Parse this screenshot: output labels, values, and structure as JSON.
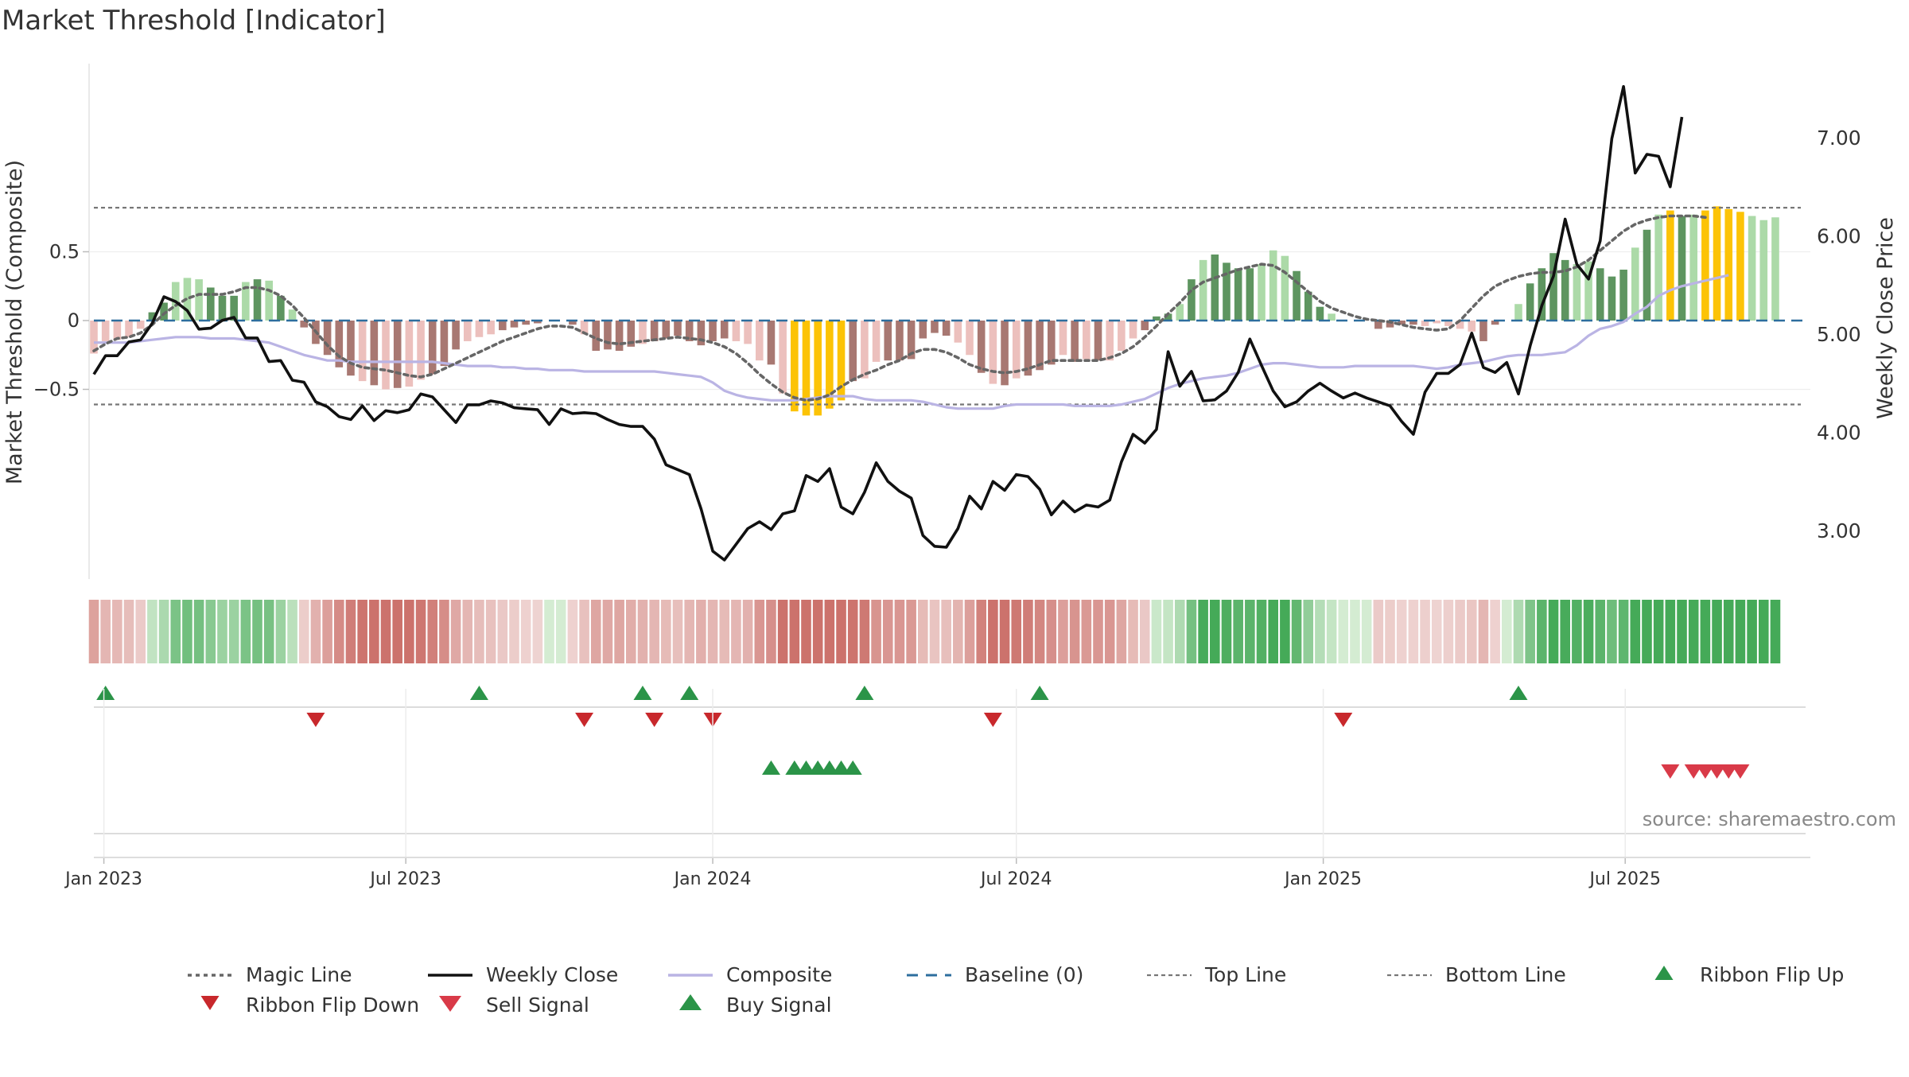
{
  "chart_data": {
    "type": "bar",
    "title": "Market Threshold [Indicator]",
    "ylabel": "Market Threshold (Composite)",
    "y2label": "Weekly Close Price",
    "source": "source: sharemaestro.com",
    "ylim": [
      -0.93,
      0.93
    ],
    "y2lim": [
      2.43,
      7.98
    ],
    "y_ticks": [
      {
        "value": 0.5,
        "label": "0.5"
      },
      {
        "value": 0,
        "label": "0"
      },
      {
        "value": -0.5,
        "label": "−0.5"
      }
    ],
    "y2_ticks": [
      {
        "value": 7.0,
        "label": "7.00"
      },
      {
        "value": 6.0,
        "label": "6.00"
      },
      {
        "value": 5.0,
        "label": "5.00"
      },
      {
        "value": 4.0,
        "label": "4.00"
      },
      {
        "value": 3.0,
        "label": "3.00"
      }
    ],
    "x_start": "2022-12-26",
    "x_end": "2025-10-20",
    "x_ticks": [
      {
        "date": "2023-01-01",
        "label": "Jan 2023"
      },
      {
        "date": "2023-07-01",
        "label": "Jul 2023"
      },
      {
        "date": "2024-01-01",
        "label": "Jan 2024"
      },
      {
        "date": "2024-07-01",
        "label": "Jul 2024"
      },
      {
        "date": "2025-01-01",
        "label": "Jan 2025"
      },
      {
        "date": "2025-07-01",
        "label": "Jul 2025"
      }
    ],
    "top_line": 0.82,
    "bottom_line": -0.61,
    "colors": {
      "bar_strong_up": "#5e9560",
      "bar_weak_up": "#acdaa8",
      "bar_strong_down": "#a87872",
      "bar_weak_down": "#ecc0bd",
      "bar_signal": "#fcc306",
      "magic_line": "#666666",
      "weekly_close": "#111111",
      "composite": "#bab4e4",
      "baseline": "#2d6e9e",
      "ref_line": "#777777",
      "flip_up": "#2b9448",
      "flip_down": "#c8282c",
      "sell": "#d93a48",
      "buy": "#2b9448"
    },
    "series": [
      {
        "name": "Magic Line",
        "values": [
          -0.22,
          -0.17,
          -0.13,
          -0.12,
          -0.09,
          -0.03,
          0.05,
          0.11,
          0.16,
          0.19,
          0.19,
          0.19,
          0.21,
          0.24,
          0.24,
          0.22,
          0.18,
          0.11,
          0.02,
          -0.08,
          -0.18,
          -0.26,
          -0.31,
          -0.34,
          -0.35,
          -0.36,
          -0.38,
          -0.4,
          -0.41,
          -0.39,
          -0.35,
          -0.31,
          -0.27,
          -0.23,
          -0.19,
          -0.15,
          -0.12,
          -0.09,
          -0.06,
          -0.04,
          -0.04,
          -0.05,
          -0.09,
          -0.13,
          -0.16,
          -0.17,
          -0.16,
          -0.15,
          -0.14,
          -0.13,
          -0.12,
          -0.13,
          -0.14,
          -0.16,
          -0.19,
          -0.24,
          -0.31,
          -0.39,
          -0.46,
          -0.52,
          -0.56,
          -0.58,
          -0.57,
          -0.54,
          -0.48,
          -0.43,
          -0.39,
          -0.36,
          -0.32,
          -0.29,
          -0.24,
          -0.21,
          -0.21,
          -0.23,
          -0.27,
          -0.32,
          -0.35,
          -0.37,
          -0.38,
          -0.37,
          -0.35,
          -0.32,
          -0.29,
          -0.29,
          -0.29,
          -0.29,
          -0.29,
          -0.27,
          -0.24,
          -0.19,
          -0.12,
          -0.04,
          0.05,
          0.13,
          0.22,
          0.28,
          0.31,
          0.34,
          0.37,
          0.39,
          0.41,
          0.4,
          0.35,
          0.28,
          0.21,
          0.14,
          0.09,
          0.06,
          0.03,
          0.01,
          0.0,
          -0.01,
          -0.03,
          -0.05,
          -0.06,
          -0.07,
          -0.06,
          0.0,
          0.09,
          0.18,
          0.25,
          0.29,
          0.32,
          0.34,
          0.35,
          0.35,
          0.36,
          0.39,
          0.44,
          0.51,
          0.58,
          0.65,
          0.7,
          0.73,
          0.75,
          0.76,
          0.76,
          0.76,
          0.75
        ]
      },
      {
        "name": "Weekly Close",
        "values": [
          4.59,
          4.78,
          4.78,
          4.92,
          4.94,
          5.11,
          5.38,
          5.33,
          5.24,
          5.05,
          5.06,
          5.14,
          5.17,
          4.96,
          4.96,
          4.72,
          4.73,
          4.53,
          4.51,
          4.31,
          4.26,
          4.16,
          4.13,
          4.27,
          4.12,
          4.22,
          4.2,
          4.23,
          4.39,
          4.36,
          4.23,
          4.1,
          4.28,
          4.28,
          4.32,
          4.3,
          4.25,
          4.24,
          4.23,
          4.08,
          4.24,
          4.19,
          4.2,
          4.19,
          4.13,
          4.08,
          4.06,
          4.06,
          3.93,
          3.67,
          3.62,
          3.57,
          3.22,
          2.79,
          2.7,
          2.86,
          3.02,
          3.09,
          3.01,
          3.17,
          3.2,
          3.56,
          3.5,
          3.63,
          3.24,
          3.17,
          3.39,
          3.69,
          3.5,
          3.4,
          3.33,
          2.95,
          2.84,
          2.83,
          3.02,
          3.35,
          3.22,
          3.5,
          3.41,
          3.57,
          3.55,
          3.42,
          3.16,
          3.3,
          3.19,
          3.26,
          3.24,
          3.31,
          3.7,
          3.98,
          3.89,
          4.03,
          4.82,
          4.47,
          4.62,
          4.32,
          4.33,
          4.42,
          4.61,
          4.95,
          4.68,
          4.42,
          4.26,
          4.31,
          4.42,
          4.5,
          4.42,
          4.35,
          4.4,
          4.35,
          4.31,
          4.27,
          4.11,
          3.98,
          4.41,
          4.6,
          4.6,
          4.69,
          5.01,
          4.66,
          4.61,
          4.71,
          4.39,
          4.88,
          5.29,
          5.59,
          6.17,
          5.71,
          5.56,
          5.95,
          6.99,
          7.52,
          6.64,
          6.83,
          6.81,
          6.5,
          7.21
        ]
      },
      {
        "name": "Composite",
        "values": [
          -0.16,
          -0.16,
          -0.16,
          -0.16,
          -0.15,
          -0.14,
          -0.13,
          -0.12,
          -0.12,
          -0.12,
          -0.13,
          -0.13,
          -0.13,
          -0.14,
          -0.15,
          -0.16,
          -0.19,
          -0.22,
          -0.25,
          -0.27,
          -0.29,
          -0.29,
          -0.3,
          -0.3,
          -0.3,
          -0.3,
          -0.3,
          -0.3,
          -0.3,
          -0.3,
          -0.31,
          -0.32,
          -0.33,
          -0.33,
          -0.33,
          -0.34,
          -0.34,
          -0.35,
          -0.35,
          -0.36,
          -0.36,
          -0.36,
          -0.37,
          -0.37,
          -0.37,
          -0.37,
          -0.37,
          -0.37,
          -0.37,
          -0.38,
          -0.39,
          -0.4,
          -0.41,
          -0.45,
          -0.51,
          -0.54,
          -0.56,
          -0.57,
          -0.58,
          -0.58,
          -0.58,
          -0.57,
          -0.56,
          -0.55,
          -0.55,
          -0.55,
          -0.57,
          -0.58,
          -0.58,
          -0.58,
          -0.58,
          -0.59,
          -0.61,
          -0.63,
          -0.64,
          -0.64,
          -0.64,
          -0.64,
          -0.62,
          -0.61,
          -0.61,
          -0.61,
          -0.61,
          -0.61,
          -0.62,
          -0.62,
          -0.62,
          -0.62,
          -0.61,
          -0.59,
          -0.57,
          -0.53,
          -0.49,
          -0.46,
          -0.44,
          -0.42,
          -0.41,
          -0.4,
          -0.38,
          -0.35,
          -0.32,
          -0.31,
          -0.31,
          -0.32,
          -0.33,
          -0.34,
          -0.34,
          -0.34,
          -0.33,
          -0.33,
          -0.33,
          -0.33,
          -0.33,
          -0.33,
          -0.34,
          -0.35,
          -0.34,
          -0.32,
          -0.31,
          -0.3,
          -0.28,
          -0.26,
          -0.25,
          -0.25,
          -0.25,
          -0.24,
          -0.23,
          -0.18,
          -0.11,
          -0.06,
          -0.04,
          -0.01,
          0.05,
          0.1,
          0.18,
          0.22,
          0.25,
          0.27,
          0.29,
          0.31,
          0.33
        ]
      },
      {
        "name": "Composite bars",
        "values": [
          -0.24,
          -0.15,
          -0.14,
          -0.12,
          -0.06,
          0.06,
          0.13,
          0.28,
          0.31,
          0.3,
          0.24,
          0.18,
          0.18,
          0.28,
          0.3,
          0.29,
          0.18,
          0.08,
          -0.05,
          -0.17,
          -0.25,
          -0.34,
          -0.4,
          -0.44,
          -0.47,
          -0.5,
          -0.49,
          -0.48,
          -0.43,
          -0.39,
          -0.33,
          -0.21,
          -0.15,
          -0.12,
          -0.1,
          -0.07,
          -0.05,
          -0.03,
          -0.02,
          0,
          0,
          -0.03,
          -0.1,
          -0.22,
          -0.21,
          -0.22,
          -0.19,
          -0.17,
          -0.15,
          -0.13,
          -0.11,
          -0.15,
          -0.18,
          -0.15,
          -0.13,
          -0.15,
          -0.17,
          -0.29,
          -0.32,
          -0.53,
          -0.66,
          -0.69,
          -0.69,
          -0.64,
          -0.58,
          -0.44,
          -0.42,
          -0.3,
          -0.29,
          -0.29,
          -0.28,
          -0.13,
          -0.09,
          -0.11,
          -0.16,
          -0.25,
          -0.38,
          -0.46,
          -0.47,
          -0.42,
          -0.4,
          -0.36,
          -0.32,
          -0.25,
          -0.3,
          -0.28,
          -0.29,
          -0.29,
          -0.22,
          -0.13,
          -0.07,
          0.03,
          0.05,
          0.12,
          0.3,
          0.44,
          0.48,
          0.42,
          0.38,
          0.38,
          0.41,
          0.51,
          0.47,
          0.36,
          0.21,
          0.1,
          0.05,
          0,
          0,
          0,
          -0.06,
          -0.05,
          -0.03,
          -0.03,
          -0.04,
          -0.02,
          -0.04,
          -0.06,
          -0.08,
          -0.15,
          -0.03,
          0,
          0.12,
          0.27,
          0.38,
          0.49,
          0.44,
          0.41,
          0.43,
          0.38,
          0.32,
          0.37,
          0.53,
          0.66,
          0.77,
          0.8,
          0.76,
          0.77,
          0.8,
          0.83,
          0.81,
          0.79,
          0.76,
          0.73,
          0.75
        ]
      },
      {
        "name": "Baseline (0)"
      },
      {
        "name": "Top Line"
      },
      {
        "name": "Bottom Line"
      },
      {
        "name": "Ribbon Flip Up",
        "dates": [
          "2023-01-02",
          "2023-08-14",
          "2023-11-20",
          "2023-12-18",
          "2024-04-01",
          "2024-07-15",
          "2025-04-28"
        ]
      },
      {
        "name": "Ribbon Flip Down",
        "dates": [
          "2023-05-08",
          "2023-10-16",
          "2023-11-27",
          "2024-01-01",
          "2024-06-17",
          "2025-01-13"
        ]
      },
      {
        "name": "Sell Signal",
        "dates": [
          "2025-07-28",
          "2025-08-11",
          "2025-08-18",
          "2025-08-25",
          "2025-09-01",
          "2025-09-08"
        ]
      },
      {
        "name": "Buy Signal",
        "dates": [
          "2024-02-05",
          "2024-02-19",
          "2024-02-26",
          "2024-03-04",
          "2024-03-11",
          "2024-03-18",
          "2024-03-25"
        ]
      }
    ]
  }
}
